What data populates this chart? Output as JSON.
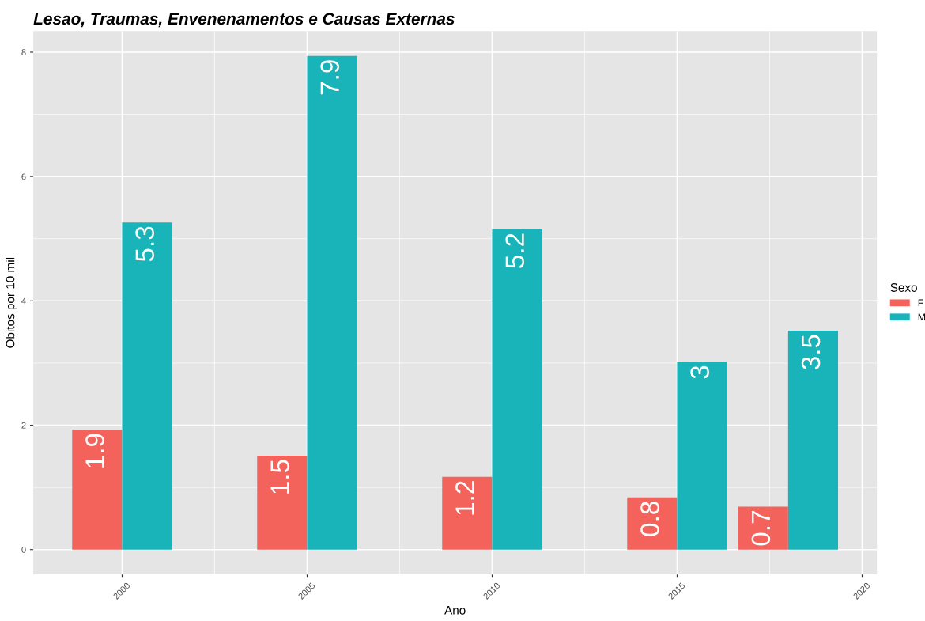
{
  "chart_data": {
    "type": "bar",
    "title": "Lesao, Traumas, Envenenamentos e Causas Externas",
    "xlabel": "Ano",
    "ylabel": "Obitos por 10 mil",
    "legend_title": "Sexo",
    "x": [
      2000,
      2005,
      2010,
      2015,
      2018
    ],
    "series": [
      {
        "name": "F",
        "color": "#f4625c",
        "values": [
          1.93,
          1.51,
          1.17,
          0.84,
          0.69
        ],
        "value_labels": [
          "1.9",
          "1.5",
          "1.2",
          "0.8",
          "0.7"
        ]
      },
      {
        "name": "M",
        "color": "#19b4b9",
        "values": [
          5.26,
          7.94,
          5.15,
          3.02,
          3.52
        ],
        "value_labels": [
          "5.3",
          "7.9",
          "5.2",
          "3",
          "3.5"
        ]
      }
    ],
    "xlim": [
      1997.6,
      2020.4
    ],
    "xticks": [
      2000,
      2005,
      2010,
      2015,
      2020
    ],
    "ylim": [
      -0.4,
      8.34
    ],
    "yticks": [
      0,
      2,
      4,
      6,
      8
    ],
    "grid": true,
    "legend": "right"
  }
}
